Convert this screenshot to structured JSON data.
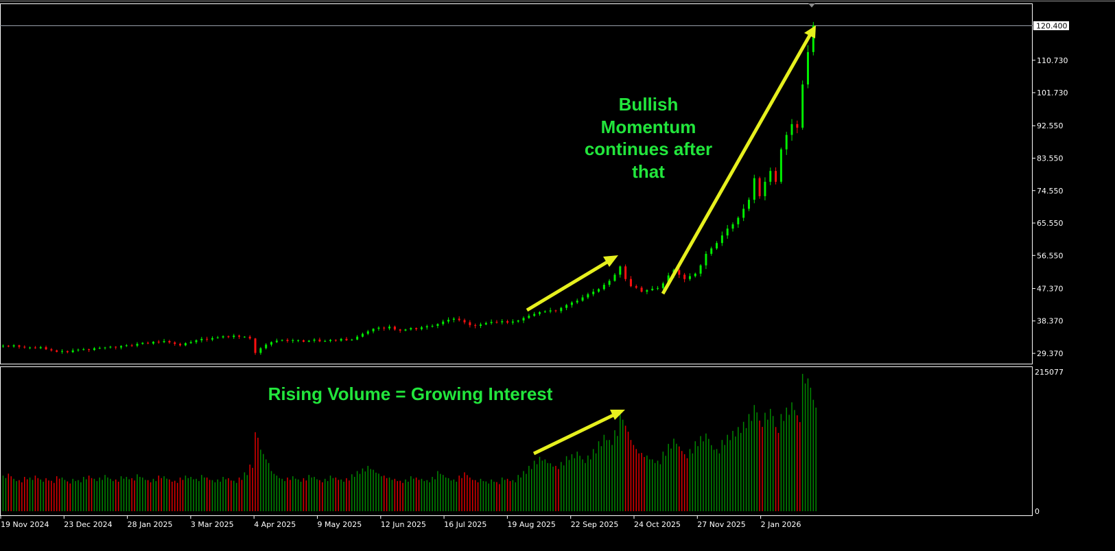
{
  "chart_data": {
    "type": "candlestick",
    "title": "",
    "colors": {
      "up": "#00ee00",
      "down": "#ff1010",
      "volume_up": "#008a00",
      "volume_down": "#e00000",
      "annotation_text": "#22e63c",
      "arrow": "#e6f01e",
      "background": "#000000",
      "frame": "#ffffff"
    },
    "price_axis": {
      "ticks": [
        "120.400",
        "110.730",
        "101.730",
        "92.550",
        "83.550",
        "74.550",
        "65.550",
        "56.550",
        "47.370",
        "38.370",
        "29.370"
      ],
      "tick_values": [
        120.4,
        110.73,
        101.73,
        92.55,
        83.55,
        74.55,
        65.55,
        56.55,
        47.37,
        38.37,
        29.37
      ],
      "current_price_label": "120.400",
      "current_price": 120.4
    },
    "volume_axis": {
      "max_label": "215077",
      "min_label": "0",
      "range": [
        0,
        215077
      ]
    },
    "x_axis": {
      "ticks": [
        "19 Nov 2024",
        "23 Dec 2024",
        "28 Jan 2025",
        "3 Mar 2025",
        "4 Apr 2025",
        "9 May 2025",
        "12 Jun 2025",
        "16 Jul 2025",
        "19 Aug 2025",
        "22 Sep 2025",
        "24 Oct 2025",
        "27 Nov 2025",
        "2 Jan 2026"
      ]
    },
    "close": [
      31.5,
      31.3,
      31.6,
      31.2,
      31.0,
      31.0,
      30.8,
      31.1,
      30.5,
      30.2,
      29.8,
      30.0,
      29.7,
      30.2,
      30.4,
      30.5,
      30.3,
      30.8,
      30.9,
      31.0,
      31.2,
      31.0,
      31.4,
      31.6,
      31.5,
      32.0,
      32.3,
      32.1,
      32.6,
      32.5,
      32.8,
      32.4,
      32.0,
      31.6,
      32.2,
      32.5,
      33.0,
      33.4,
      33.2,
      33.6,
      33.8,
      34.1,
      33.9,
      34.3,
      34.0,
      34.0,
      33.5,
      29.5,
      30.8,
      31.8,
      32.5,
      32.9,
      33.1,
      32.8,
      33.0,
      33.0,
      32.6,
      32.9,
      33.2,
      32.7,
      32.8,
      33.1,
      32.9,
      33.4,
      33.0,
      33.2,
      34.0,
      34.8,
      35.5,
      36.2,
      36.5,
      36.3,
      36.8,
      36.0,
      35.7,
      36.0,
      36.4,
      36.1,
      36.6,
      36.9,
      37.0,
      37.5,
      38.2,
      38.7,
      39.0,
      38.6,
      38.0,
      37.2,
      37.0,
      37.4,
      37.8,
      38.1,
      38.0,
      38.3,
      37.9,
      38.2,
      38.5,
      39.2,
      39.8,
      40.3,
      40.8,
      41.0,
      41.3,
      41.1,
      42.0,
      42.8,
      43.5,
      44.0,
      44.9,
      45.8,
      46.5,
      47.2,
      48.4,
      49.5,
      51.2,
      53.5,
      50.0,
      48.0,
      47.6,
      46.5,
      46.9,
      47.3,
      47.5,
      48.8,
      51.0,
      52.5,
      51.2,
      50.0,
      50.8,
      51.5,
      53.8,
      57.0,
      58.5,
      60.0,
      62.1,
      64.0,
      65.2,
      67.0,
      69.5,
      72.0,
      78.0,
      73.0,
      77.0,
      80.0,
      77.0,
      86.0,
      90.0,
      93.0,
      92.0,
      104.0,
      113.0,
      120.4
    ],
    "volume": [
      55000,
      58000,
      50000,
      48000,
      53000,
      52000,
      55000,
      49000,
      51000,
      47000,
      54000,
      52000,
      46000,
      50000,
      48000,
      53000,
      55000,
      50000,
      52000,
      56000,
      50000,
      49000,
      54000,
      53000,
      51000,
      57000,
      52000,
      48000,
      50000,
      55000,
      54000,
      49000,
      47000,
      52000,
      55000,
      53000,
      50000,
      56000,
      52000,
      48000,
      49000,
      53000,
      51000,
      47000,
      52000,
      60000,
      72000,
      122000,
      95000,
      80000,
      62000,
      55000,
      50000,
      52000,
      54000,
      49000,
      51000,
      56000,
      53000,
      48000,
      50000,
      55000,
      52000,
      49000,
      51000,
      57000,
      62000,
      66000,
      70000,
      64000,
      58000,
      55000,
      52000,
      50000,
      47000,
      49000,
      54000,
      52000,
      50000,
      48000,
      53000,
      62000,
      56000,
      51000,
      49000,
      55000,
      60000,
      52000,
      48000,
      50000,
      46000,
      49000,
      45000,
      52000,
      50000,
      48000,
      56000,
      62000,
      70000,
      78000,
      84000,
      80000,
      74000,
      70000,
      76000,
      85000,
      88000,
      92000,
      80000,
      86000,
      96000,
      108000,
      118000,
      110000,
      125000,
      152000,
      132000,
      110000,
      96000,
      90000,
      86000,
      80000,
      78000,
      92000,
      104000,
      112000,
      100000,
      88000,
      96000,
      108000,
      116000,
      120000,
      102000,
      96000,
      110000,
      118000,
      124000,
      130000,
      138000,
      150000,
      164000,
      140000,
      152000,
      158000,
      130000,
      150000,
      160000,
      168000,
      148000,
      212000,
      205000,
      172000
    ]
  },
  "annotations": {
    "bullish": [
      "Bullish",
      "Momentum",
      "continues after",
      "that"
    ],
    "volume": "Rising Volume = Growing Interest"
  }
}
